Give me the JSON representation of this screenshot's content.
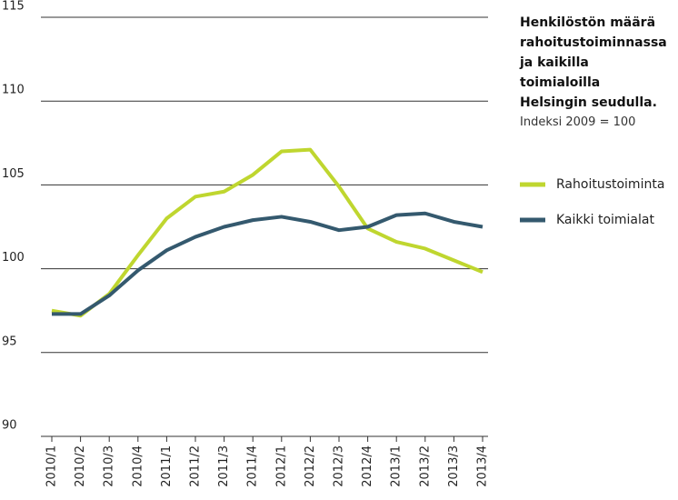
{
  "chart_data": {
    "type": "line",
    "title": "Henkilöstön määrä rahoitustoiminnassa ja kaikilla toimialoilla Helsingin seudulla.",
    "subtitle": "Indeksi 2009 = 100",
    "categories": [
      "2010/1",
      "2010/2",
      "2010/3",
      "2010/4",
      "2011/1",
      "2011/2",
      "2011/3",
      "2011/4",
      "2012/1",
      "2012/2",
      "2012/3",
      "2012/4",
      "2013/1",
      "2013/2",
      "2013/3",
      "2013/4"
    ],
    "series": [
      {
        "name": "Rahoitustoiminta",
        "color": "#bfd62f",
        "values": [
          97.5,
          97.2,
          98.5,
          100.8,
          103.0,
          104.3,
          104.6,
          105.6,
          107.0,
          107.1,
          104.9,
          102.4,
          101.6,
          101.2,
          100.5,
          99.8
        ]
      },
      {
        "name": "Kaikki toimialat",
        "color": "#34596e",
        "values": [
          97.3,
          97.3,
          98.4,
          99.9,
          101.1,
          101.9,
          102.5,
          102.9,
          103.1,
          102.8,
          102.3,
          102.5,
          103.2,
          103.3,
          102.8,
          102.5
        ]
      }
    ],
    "ylim": [
      90,
      115
    ],
    "yticks": [
      90,
      95,
      100,
      105,
      110,
      115
    ],
    "grid": true,
    "legend": "right"
  }
}
